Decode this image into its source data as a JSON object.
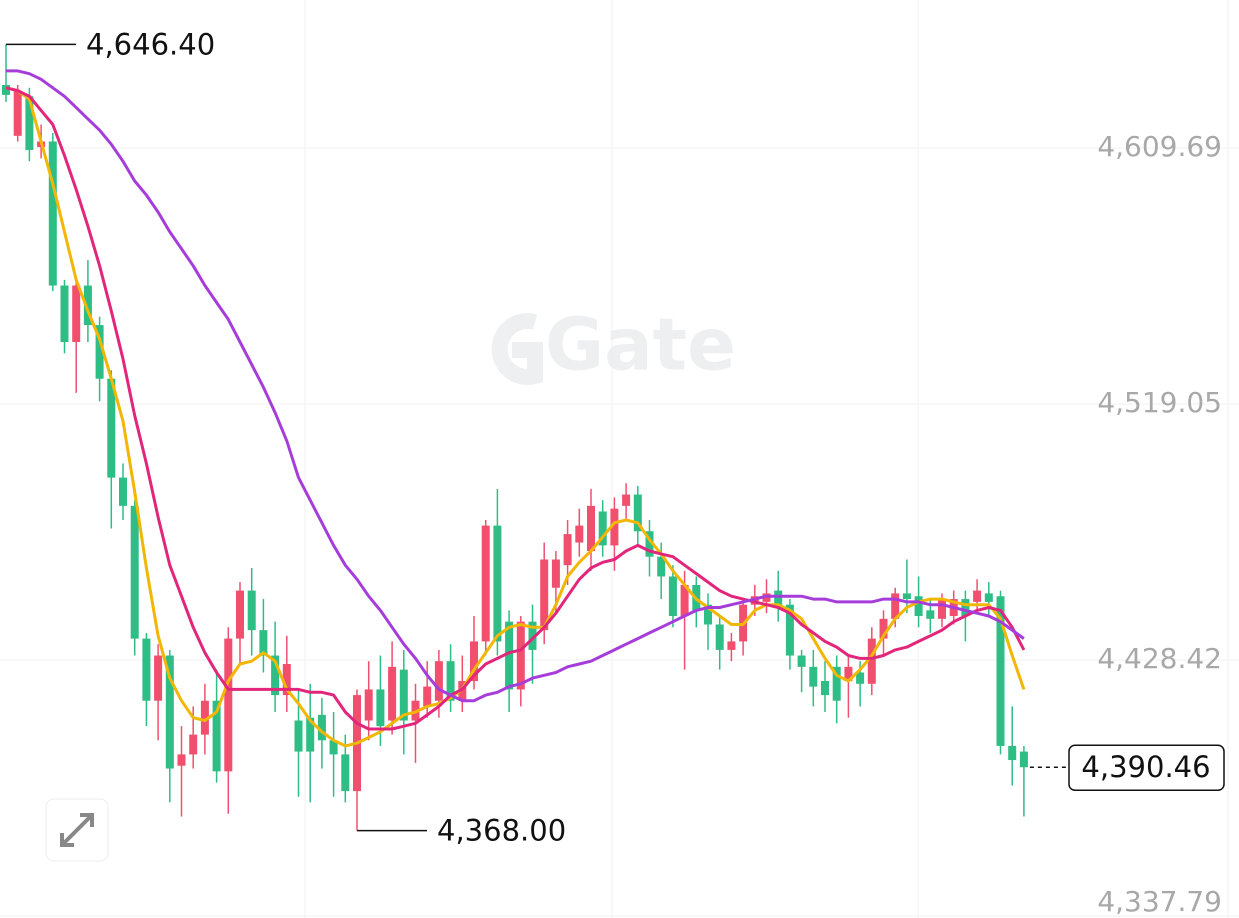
{
  "chart_data": {
    "type": "candlestick",
    "watermark": "Gate",
    "up_color": "#f0506e",
    "down_color": "#2ebd85",
    "ylim": [
      4337.08,
      4662.09
    ],
    "yticks": [
      {
        "value": 4609.69,
        "label": "4,609.69"
      },
      {
        "value": 4519.05,
        "label": "4,519.05"
      },
      {
        "value": 4428.42,
        "label": "4,428.42"
      },
      {
        "value": 4337.79,
        "label": "4,337.79"
      }
    ],
    "grid": true,
    "open": [
      4632,
      4614,
      4628,
      4610,
      4612,
      4561,
      4541,
      4561,
      4547,
      4528,
      4493,
      4483,
      4436,
      4414,
      4430,
      4391,
      4395,
      4402,
      4414,
      4389,
      4436,
      4453,
      4439,
      4430,
      4416,
      4407,
      4408,
      4409,
      4400,
      4395,
      4382,
      4407,
      4418,
      4407,
      4425,
      4407,
      4412,
      4414,
      4428,
      4414,
      4421,
      4435,
      4476,
      4442,
      4418,
      4442,
      4439,
      4454,
      4462,
      4470,
      4467,
      4481,
      4469,
      4483,
      4487,
      4474,
      4465,
      4458,
      4444,
      4455,
      4448,
      4441,
      4432,
      4435,
      4448,
      4449,
      4453,
      4448,
      4430,
      4426,
      4421,
      4426,
      4421,
      4424,
      4420,
      4436,
      4443,
      4452,
      4451,
      4446,
      4443,
      4444,
      4450,
      4449,
      4452,
      4451,
      4398,
      4396
    ],
    "high": [
      4646.4,
      4632,
      4631,
      4618,
      4615,
      4563,
      4563,
      4570,
      4550,
      4531,
      4498,
      4485,
      4438,
      4434,
      4432,
      4405,
      4412,
      4420,
      4425,
      4440,
      4456,
      4461,
      4450,
      4442,
      4437,
      4418,
      4420,
      4415,
      4410,
      4402,
      4418,
      4428,
      4430,
      4435,
      4432,
      4420,
      4428,
      4432,
      4434,
      4430,
      4444,
      4478,
      4489,
      4446,
      4444,
      4448,
      4470,
      4467,
      4478,
      4482,
      4489,
      4485,
      4486,
      4491,
      4490,
      4478,
      4470,
      4462,
      4460,
      4458,
      4452,
      4444,
      4438,
      4450,
      4455,
      4457,
      4460,
      4450,
      4432,
      4432,
      4428,
      4430,
      4430,
      4428,
      4440,
      4446,
      4454,
      4464,
      4458,
      4450,
      4452,
      4453,
      4453,
      4457,
      4456,
      4453,
      4412,
      4398
    ],
    "low": [
      4626,
      4612,
      4605,
      4606,
      4559,
      4537,
      4523,
      4541,
      4520,
      4475,
      4478,
      4430,
      4405,
      4400,
      4378,
      4373,
      4390,
      4395,
      4385,
      4374,
      4427,
      4430,
      4424,
      4410,
      4410,
      4380,
      4378,
      4390,
      4380,
      4378,
      4368.0,
      4400,
      4398,
      4402,
      4395,
      4392,
      4408,
      4408,
      4410,
      4410,
      4418,
      4430,
      4430,
      4410,
      4412,
      4420,
      4434,
      4445,
      4455,
      4465,
      4460,
      4465,
      4460,
      4478,
      4469,
      4458,
      4450,
      4440,
      4425,
      4440,
      4432,
      4425,
      4428,
      4430,
      4444,
      4445,
      4442,
      4425,
      4417,
      4412,
      4410,
      4406,
      4408,
      4412,
      4416,
      4430,
      4440,
      4445,
      4440,
      4438,
      4440,
      4441,
      4435,
      4445,
      4444,
      4395,
      4384,
      4373
    ],
    "close": [
      4628.5,
      4630,
      4609,
      4612,
      4561,
      4541,
      4561,
      4547,
      4528,
      4493,
      4483,
      4436,
      4414,
      4430,
      4390,
      4395,
      4402,
      4414,
      4389,
      4436,
      4453,
      4439,
      4430,
      4416,
      4427,
      4396,
      4396,
      4400,
      4395,
      4382,
      4416,
      4418,
      4405,
      4426,
      4407,
      4414,
      4419,
      4428,
      4414,
      4421,
      4435,
      4476,
      4435,
      4418,
      4442,
      4432,
      4464,
      4464,
      4473,
      4476,
      4483,
      4469,
      4482,
      4487,
      4474,
      4465,
      4458,
      4444,
      4455,
      4446,
      4441,
      4432,
      4435,
      4448,
      4451,
      4452,
      4448,
      4430,
      4426,
      4419,
      4416,
      4414,
      4426,
      4420,
      4436,
      4443,
      4452,
      4450,
      4444,
      4443,
      4450,
      4450,
      4444,
      4453,
      4449,
      4398,
      4393,
      4390.46
    ],
    "series": [
      {
        "color": "#f2b705",
        "values": [
          4631,
          4630,
          4627,
          4612,
          4597,
          4580,
          4563,
          4552,
          4542,
          4528,
          4513,
          4488,
          4461,
          4437,
          4422,
          4414,
          4408,
          4407,
          4410,
          4421,
          4427,
          4428,
          4431,
          4428,
          4418,
          4413,
          4407,
          4403,
          4400,
          4398,
          4399,
          4401,
          4403,
          4406,
          4409,
          4410,
          4412,
          4413,
          4415,
          4418,
          4425,
          4431,
          4437,
          4440,
          4441,
          4440,
          4440,
          4448,
          4458,
          4463,
          4467,
          4472,
          4477,
          4478,
          4477,
          4471,
          4466,
          4460,
          4455,
          4450,
          4447,
          4444,
          4441,
          4441,
          4446,
          4448,
          4448,
          4446,
          4443,
          4436,
          4429,
          4423,
          4421,
          4425,
          4430,
          4437,
          4443,
          4447,
          4449,
          4450,
          4450,
          4449,
          4448,
          4448,
          4448,
          4443,
          4430,
          4418
        ]
      },
      {
        "color": "#e1267b",
        "values": [
          4631,
          4630,
          4628,
          4623,
          4618,
          4607,
          4595,
          4582,
          4568,
          4552,
          4535,
          4515,
          4498,
          4479,
          4462,
          4451,
          4440,
          4431,
          4424,
          4418,
          4418,
          4418,
          4418,
          4418,
          4418,
          4418,
          4417,
          4417,
          4416,
          4410,
          4406,
          4404,
          4404,
          4404,
          4405,
          4406,
          4409,
          4412,
          4416,
          4418,
          4423,
          4427,
          4429,
          4431,
          4432,
          4436,
          4440,
          4445,
          4451,
          4457,
          4461,
          4463,
          4464,
          4467,
          4469,
          4467,
          4466,
          4465,
          4462,
          4459,
          4456,
          4453,
          4451,
          4450,
          4449,
          4448,
          4447,
          4445,
          4441,
          4438,
          4435,
          4433,
          4430,
          4429,
          4429,
          4430,
          4432,
          4433,
          4435,
          4437,
          4439,
          4442,
          4444,
          4446,
          4447,
          4446,
          4440,
          4432
        ]
      },
      {
        "color": "#a63ddb",
        "values": [
          4637,
          4637,
          4636,
          4634,
          4631,
          4628,
          4624,
          4620,
          4616,
          4611,
          4605,
          4598,
          4593,
          4587,
          4580,
          4574,
          4568,
          4561,
          4555,
          4549,
          4541,
          4533,
          4525,
          4516,
          4506,
          4493,
          4485,
          4477,
          4469,
          4462,
          4457,
          4451,
          4446,
          4440,
          4434,
          4429,
          4423,
          4418,
          4416,
          4414,
          4414,
          4416,
          4417,
          4419,
          4420,
          4422,
          4423,
          4424,
          4426,
          4427,
          4428,
          4430,
          4432,
          4434,
          4436,
          4438,
          4440,
          4442,
          4444,
          4446,
          4447,
          4447,
          4448,
          4449,
          4450,
          4451,
          4451,
          4451,
          4451,
          4450,
          4450,
          4449,
          4449,
          4449,
          4449,
          4450,
          4450,
          4449,
          4449,
          4448,
          4448,
          4447,
          4446,
          4445,
          4444,
          4442,
          4439,
          4436
        ]
      }
    ],
    "annotations": [
      {
        "text": "4,646.40",
        "value": 4646.4,
        "kind": "high"
      },
      {
        "text": "4,368.00",
        "value": 4368.0,
        "kind": "low"
      },
      {
        "text": "4,390.46",
        "value": 4390.46,
        "kind": "last"
      }
    ]
  }
}
